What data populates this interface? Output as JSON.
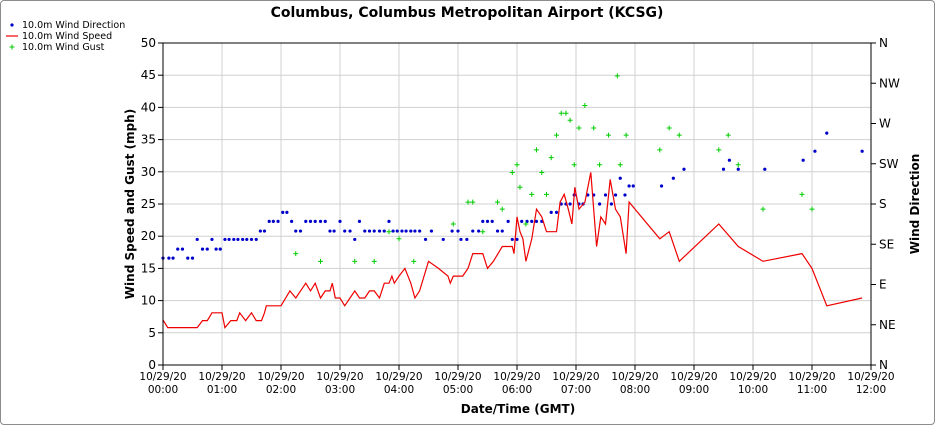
{
  "chart_data": {
    "type": "line",
    "title": "Columbus, Columbus Metropolitan Airport (KCSG)",
    "xlabel": "Date/Time (GMT)",
    "ylabel": "Wind Speed and Gust (mph)",
    "y2label": "Wind Direction",
    "ylim": [
      0,
      50
    ],
    "yticks": [
      "0",
      "5",
      "10",
      "15",
      "20",
      "25",
      "30",
      "35",
      "40",
      "45",
      "50"
    ],
    "y2ticks": [
      "N",
      "NE",
      "E",
      "SE",
      "S",
      "SW",
      "W",
      "NW",
      "N"
    ],
    "xlim_hours": [
      0,
      12
    ],
    "xticks": [
      {
        "h": 0,
        "date": "10/29/20",
        "time": "00:00"
      },
      {
        "h": 1,
        "date": "10/29/20",
        "time": "01:00"
      },
      {
        "h": 2,
        "date": "10/29/20",
        "time": "02:00"
      },
      {
        "h": 3,
        "date": "10/29/20",
        "time": "03:00"
      },
      {
        "h": 4,
        "date": "10/29/20",
        "time": "04:00"
      },
      {
        "h": 5,
        "date": "10/29/20",
        "time": "05:00"
      },
      {
        "h": 6,
        "date": "10/29/20",
        "time": "06:00"
      },
      {
        "h": 7,
        "date": "10/29/20",
        "time": "07:00"
      },
      {
        "h": 8,
        "date": "10/29/20",
        "time": "08:00"
      },
      {
        "h": 9,
        "date": "10/29/20",
        "time": "09:00"
      },
      {
        "h": 10,
        "date": "10/29/20",
        "time": "10:00"
      },
      {
        "h": 11,
        "date": "10/29/20",
        "time": "11:00"
      },
      {
        "h": 12,
        "date": "10/29/20",
        "time": "12:00"
      }
    ],
    "grid": true,
    "legend_position": "top-left",
    "series": [
      {
        "name": "10.0m Wind Direction",
        "color": "#0000cc",
        "marker": "dot",
        "axis": "right",
        "points": [
          [
            0.0,
            16.6
          ],
          [
            0.1,
            16.6
          ],
          [
            0.17,
            16.6
          ],
          [
            0.25,
            18.0
          ],
          [
            0.33,
            18.0
          ],
          [
            0.42,
            16.6
          ],
          [
            0.5,
            16.6
          ],
          [
            0.58,
            19.5
          ],
          [
            0.67,
            18.0
          ],
          [
            0.75,
            18.0
          ],
          [
            0.83,
            19.5
          ],
          [
            0.9,
            18.0
          ],
          [
            0.97,
            18.0
          ],
          [
            1.05,
            19.5
          ],
          [
            1.12,
            19.5
          ],
          [
            1.2,
            19.5
          ],
          [
            1.27,
            19.5
          ],
          [
            1.35,
            19.5
          ],
          [
            1.42,
            19.5
          ],
          [
            1.5,
            19.5
          ],
          [
            1.58,
            19.5
          ],
          [
            1.65,
            20.8
          ],
          [
            1.72,
            20.8
          ],
          [
            1.8,
            22.3
          ],
          [
            1.87,
            22.3
          ],
          [
            1.95,
            22.3
          ],
          [
            2.03,
            23.7
          ],
          [
            2.1,
            23.7
          ],
          [
            2.18,
            22.3
          ],
          [
            2.25,
            20.8
          ],
          [
            2.33,
            20.8
          ],
          [
            2.42,
            22.3
          ],
          [
            2.5,
            22.3
          ],
          [
            2.58,
            22.3
          ],
          [
            2.67,
            22.3
          ],
          [
            2.75,
            22.3
          ],
          [
            2.83,
            20.8
          ],
          [
            2.9,
            20.8
          ],
          [
            3.0,
            22.3
          ],
          [
            3.08,
            20.8
          ],
          [
            3.17,
            20.8
          ],
          [
            3.25,
            19.5
          ],
          [
            3.33,
            22.3
          ],
          [
            3.42,
            20.8
          ],
          [
            3.5,
            20.8
          ],
          [
            3.58,
            20.8
          ],
          [
            3.67,
            20.8
          ],
          [
            3.75,
            20.8
          ],
          [
            3.83,
            22.3
          ],
          [
            3.9,
            20.8
          ],
          [
            3.97,
            20.8
          ],
          [
            4.05,
            20.8
          ],
          [
            4.12,
            20.8
          ],
          [
            4.2,
            20.8
          ],
          [
            4.27,
            20.8
          ],
          [
            4.35,
            20.8
          ],
          [
            4.45,
            19.5
          ],
          [
            4.55,
            20.8
          ],
          [
            4.75,
            19.5
          ],
          [
            4.9,
            20.8
          ],
          [
            5.0,
            20.8
          ],
          [
            5.05,
            19.5
          ],
          [
            5.15,
            19.5
          ],
          [
            5.25,
            20.8
          ],
          [
            5.35,
            20.8
          ],
          [
            5.42,
            22.3
          ],
          [
            5.5,
            22.3
          ],
          [
            5.58,
            22.3
          ],
          [
            5.67,
            20.8
          ],
          [
            5.75,
            20.8
          ],
          [
            5.85,
            22.3
          ],
          [
            5.92,
            19.5
          ],
          [
            6.0,
            19.5
          ],
          [
            6.08,
            22.3
          ],
          [
            6.17,
            22.3
          ],
          [
            6.25,
            22.3
          ],
          [
            6.33,
            22.3
          ],
          [
            6.42,
            22.3
          ],
          [
            6.58,
            23.7
          ],
          [
            6.67,
            23.7
          ],
          [
            6.75,
            25.0
          ],
          [
            6.83,
            25.0
          ],
          [
            6.9,
            25.0
          ],
          [
            6.97,
            26.4
          ],
          [
            7.05,
            25.0
          ],
          [
            7.12,
            25.0
          ],
          [
            7.2,
            26.4
          ],
          [
            7.3,
            26.4
          ],
          [
            7.4,
            25.0
          ],
          [
            7.5,
            26.4
          ],
          [
            7.6,
            25.0
          ],
          [
            7.67,
            26.4
          ],
          [
            7.75,
            29.0
          ],
          [
            7.83,
            26.4
          ],
          [
            7.9,
            27.8
          ],
          [
            7.97,
            27.8
          ],
          [
            8.45,
            27.8
          ],
          [
            8.65,
            29.0
          ],
          [
            8.83,
            30.4
          ],
          [
            9.5,
            30.4
          ],
          [
            9.6,
            31.8
          ],
          [
            9.75,
            30.4
          ],
          [
            10.2,
            30.4
          ],
          [
            10.85,
            31.8
          ],
          [
            11.05,
            33.2
          ],
          [
            11.25,
            36.0
          ],
          [
            11.85,
            33.2
          ]
        ]
      },
      {
        "name": "10.0m Wind Speed",
        "color": "#ee0000",
        "marker": "line",
        "axis": "left",
        "points": [
          [
            0.0,
            7.0
          ],
          [
            0.08,
            5.8
          ],
          [
            0.58,
            5.8
          ],
          [
            0.67,
            6.9
          ],
          [
            0.75,
            6.9
          ],
          [
            0.83,
            8.1
          ],
          [
            1.0,
            8.1
          ],
          [
            1.05,
            5.8
          ],
          [
            1.15,
            6.9
          ],
          [
            1.25,
            6.9
          ],
          [
            1.3,
            8.1
          ],
          [
            1.4,
            6.9
          ],
          [
            1.5,
            8.1
          ],
          [
            1.58,
            6.9
          ],
          [
            1.67,
            6.9
          ],
          [
            1.72,
            8.1
          ],
          [
            1.75,
            9.2
          ],
          [
            2.0,
            9.2
          ],
          [
            2.15,
            11.5
          ],
          [
            2.25,
            10.4
          ],
          [
            2.33,
            11.5
          ],
          [
            2.42,
            12.7
          ],
          [
            2.5,
            11.5
          ],
          [
            2.58,
            12.7
          ],
          [
            2.67,
            10.4
          ],
          [
            2.75,
            11.5
          ],
          [
            2.83,
            11.5
          ],
          [
            2.87,
            12.7
          ],
          [
            2.92,
            10.4
          ],
          [
            3.0,
            10.4
          ],
          [
            3.08,
            9.2
          ],
          [
            3.17,
            10.4
          ],
          [
            3.25,
            11.5
          ],
          [
            3.33,
            10.4
          ],
          [
            3.42,
            10.4
          ],
          [
            3.5,
            11.5
          ],
          [
            3.58,
            11.5
          ],
          [
            3.67,
            10.4
          ],
          [
            3.75,
            12.7
          ],
          [
            3.83,
            12.7
          ],
          [
            3.88,
            13.8
          ],
          [
            3.92,
            12.7
          ],
          [
            4.0,
            13.8
          ],
          [
            4.1,
            15.0
          ],
          [
            4.2,
            12.7
          ],
          [
            4.27,
            10.4
          ],
          [
            4.35,
            11.5
          ],
          [
            4.5,
            16.1
          ],
          [
            4.67,
            15.0
          ],
          [
            4.83,
            13.8
          ],
          [
            4.87,
            12.7
          ],
          [
            4.92,
            13.8
          ],
          [
            5.0,
            13.8
          ],
          [
            5.08,
            13.8
          ],
          [
            5.17,
            15.0
          ],
          [
            5.25,
            17.3
          ],
          [
            5.42,
            17.3
          ],
          [
            5.5,
            15.0
          ],
          [
            5.6,
            16.1
          ],
          [
            5.75,
            18.4
          ],
          [
            5.92,
            18.4
          ],
          [
            5.95,
            17.3
          ],
          [
            6.0,
            23.0
          ],
          [
            6.05,
            20.7
          ],
          [
            6.1,
            19.6
          ],
          [
            6.15,
            16.1
          ],
          [
            6.25,
            19.6
          ],
          [
            6.33,
            24.2
          ],
          [
            6.42,
            23.0
          ],
          [
            6.5,
            20.7
          ],
          [
            6.67,
            20.7
          ],
          [
            6.73,
            25.3
          ],
          [
            6.8,
            26.5
          ],
          [
            6.87,
            24.2
          ],
          [
            6.93,
            21.9
          ],
          [
            6.98,
            27.6
          ],
          [
            7.05,
            24.2
          ],
          [
            7.15,
            25.3
          ],
          [
            7.25,
            29.9
          ],
          [
            7.35,
            18.4
          ],
          [
            7.42,
            23.0
          ],
          [
            7.5,
            21.9
          ],
          [
            7.58,
            28.8
          ],
          [
            7.67,
            24.2
          ],
          [
            7.75,
            23.0
          ],
          [
            7.85,
            17.3
          ],
          [
            7.9,
            25.3
          ],
          [
            8.42,
            19.6
          ],
          [
            8.58,
            20.7
          ],
          [
            8.75,
            16.1
          ],
          [
            9.42,
            21.9
          ],
          [
            9.75,
            18.4
          ],
          [
            10.17,
            16.1
          ],
          [
            10.83,
            17.3
          ],
          [
            11.0,
            15.0
          ],
          [
            11.25,
            9.2
          ],
          [
            11.85,
            10.4
          ]
        ]
      },
      {
        "name": "10.0m Wind Gust",
        "color": "#00cc00",
        "marker": "plus",
        "axis": "left",
        "points": [
          [
            2.25,
            17.3
          ],
          [
            2.67,
            16.1
          ],
          [
            3.25,
            16.1
          ],
          [
            3.58,
            16.1
          ],
          [
            3.83,
            20.7
          ],
          [
            4.0,
            19.6
          ],
          [
            4.25,
            16.1
          ],
          [
            4.92,
            21.9
          ],
          [
            5.17,
            25.3
          ],
          [
            5.25,
            25.3
          ],
          [
            5.42,
            20.7
          ],
          [
            5.67,
            25.3
          ],
          [
            5.75,
            24.2
          ],
          [
            5.92,
            29.9
          ],
          [
            6.0,
            31.1
          ],
          [
            6.05,
            27.6
          ],
          [
            6.15,
            21.9
          ],
          [
            6.25,
            26.5
          ],
          [
            6.33,
            33.4
          ],
          [
            6.42,
            29.9
          ],
          [
            6.5,
            26.5
          ],
          [
            6.58,
            32.2
          ],
          [
            6.67,
            35.7
          ],
          [
            6.75,
            39.1
          ],
          [
            6.83,
            39.1
          ],
          [
            6.9,
            38.0
          ],
          [
            6.97,
            31.1
          ],
          [
            7.05,
            36.8
          ],
          [
            7.15,
            40.3
          ],
          [
            7.3,
            36.8
          ],
          [
            7.4,
            31.1
          ],
          [
            7.55,
            35.7
          ],
          [
            7.7,
            44.9
          ],
          [
            7.75,
            31.1
          ],
          [
            7.85,
            35.7
          ],
          [
            8.42,
            33.4
          ],
          [
            8.58,
            36.8
          ],
          [
            8.75,
            35.7
          ],
          [
            9.42,
            33.4
          ],
          [
            9.58,
            35.7
          ],
          [
            9.75,
            31.1
          ],
          [
            10.17,
            24.2
          ],
          [
            10.83,
            26.5
          ],
          [
            11.0,
            24.2
          ]
        ]
      }
    ]
  }
}
